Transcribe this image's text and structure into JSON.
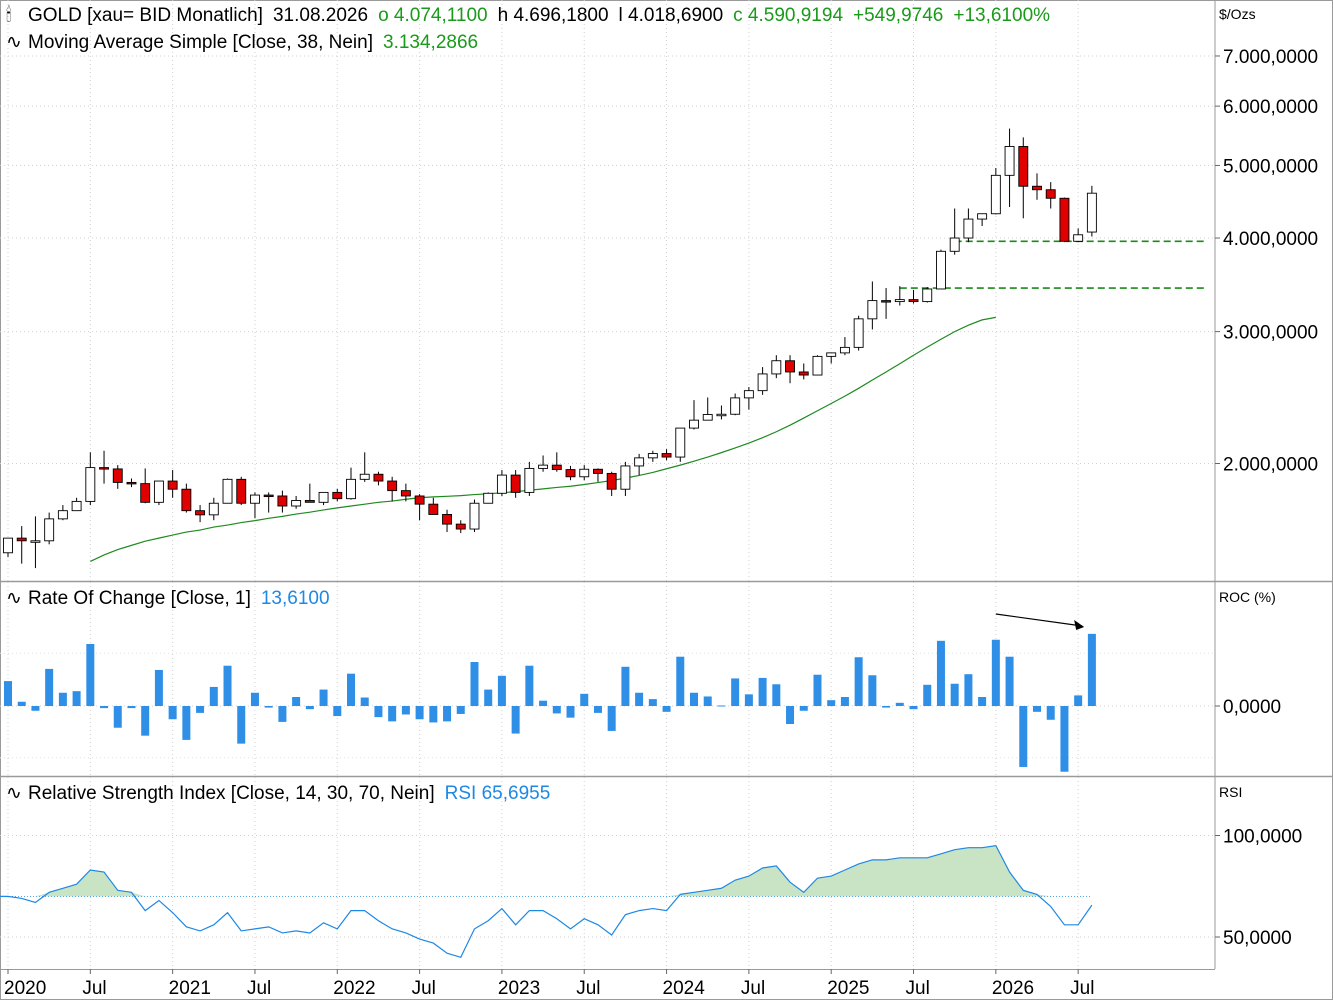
{
  "header": {
    "symbol": "GOLD [xau= BID Monatlich]",
    "date": "31.08.2026",
    "open": "o 4.074,1100",
    "high": "h 4.696,1800",
    "low": "l 4.018,6900",
    "close": "c 4.590,9194",
    "change": "+549,9746",
    "change_pct": "+13,6100%"
  },
  "indicators": {
    "ma_label": "Moving Average Simple  [Close, 38, Nein]",
    "ma_value": "3.134,2866",
    "roc_label": "Rate Of Change  [Close, 1]",
    "roc_value": "13,6100",
    "rsi_label": "Relative Strength Index  [Close, 14, 30, 70, Nein]",
    "rsi_value": "RSI 65,6955"
  },
  "units": {
    "price": "$/Ozs",
    "roc": "ROC (%)",
    "rsi": "RSI"
  },
  "colors": {
    "up_body": "#ffffff",
    "down_body": "#e00000",
    "ma": "#1f8a1f",
    "roc": "#2f8fe6",
    "rsi_line": "#1e88e5",
    "rsi_fill": "#c9e3c5",
    "support": "#1a8a1a"
  },
  "icons": {
    "candle": "candlestick-icon",
    "indicator": "wave-icon"
  },
  "chart_data": {
    "type": "candlestick",
    "price_axis": {
      "scale": "log",
      "ticks": [
        2000000,
        3000000,
        4000000,
        5000000,
        6000000,
        7000000
      ],
      "tick_labels": [
        "2.000,0000",
        "3.000,0000",
        "4.000,0000",
        "5.000,0000",
        "6.000,0000",
        "7.000,0000"
      ]
    },
    "x_labels": [
      {
        "label": "2020",
        "index": 0
      },
      {
        "label": "Jul",
        "index": 6
      },
      {
        "label": "2021",
        "index": 12
      },
      {
        "label": "Jul",
        "index": 18
      },
      {
        "label": "2022",
        "index": 24
      },
      {
        "label": "Jul",
        "index": 30
      },
      {
        "label": "2023",
        "index": 36
      },
      {
        "label": "Jul",
        "index": 42
      },
      {
        "label": "2024",
        "index": 48
      },
      {
        "label": "Jul",
        "index": 54
      },
      {
        "label": "2025",
        "index": 60
      },
      {
        "label": "Jul",
        "index": 66
      },
      {
        "label": "2026",
        "index": 72
      },
      {
        "label": "Jul",
        "index": 78
      }
    ],
    "ohlc": [
      [
        1520000,
        1590000,
        1500000,
        1590000
      ],
      [
        1590000,
        1650000,
        1470000,
        1577000
      ],
      [
        1577000,
        1700000,
        1450000,
        1577000
      ],
      [
        1577000,
        1720000,
        1560000,
        1687000
      ],
      [
        1687000,
        1760000,
        1680000,
        1730000
      ],
      [
        1730000,
        1800000,
        1740000,
        1780000
      ],
      [
        1780000,
        2070000,
        1760000,
        1975000
      ],
      [
        1975000,
        2080000,
        1880000,
        1967000
      ],
      [
        1967000,
        1990000,
        1850000,
        1887000
      ],
      [
        1887000,
        1910000,
        1860000,
        1880000
      ],
      [
        1880000,
        1970000,
        1770000,
        1775000
      ],
      [
        1775000,
        1860000,
        1760000,
        1895000
      ],
      [
        1895000,
        1960000,
        1800000,
        1848000
      ],
      [
        1848000,
        1880000,
        1720000,
        1730000
      ],
      [
        1730000,
        1760000,
        1670000,
        1708000
      ],
      [
        1708000,
        1800000,
        1680000,
        1770000
      ],
      [
        1770000,
        1910000,
        1770000,
        1905000
      ],
      [
        1905000,
        1920000,
        1760000,
        1770000
      ],
      [
        1770000,
        1830000,
        1690000,
        1815000
      ],
      [
        1815000,
        1830000,
        1720000,
        1810000
      ],
      [
        1810000,
        1840000,
        1720000,
        1755000
      ],
      [
        1755000,
        1810000,
        1740000,
        1785000
      ],
      [
        1785000,
        1880000,
        1780000,
        1775000
      ],
      [
        1775000,
        1830000,
        1760000,
        1830000
      ],
      [
        1830000,
        1850000,
        1780000,
        1795000
      ],
      [
        1795000,
        1975000,
        1790000,
        1905000
      ],
      [
        1905000,
        2070000,
        1890000,
        1935000
      ],
      [
        1935000,
        1950000,
        1870000,
        1895000
      ],
      [
        1895000,
        1920000,
        1780000,
        1840000
      ],
      [
        1840000,
        1880000,
        1780000,
        1810000
      ],
      [
        1810000,
        1820000,
        1680000,
        1765000
      ],
      [
        1765000,
        1800000,
        1710000,
        1710000
      ],
      [
        1710000,
        1735000,
        1620000,
        1660000
      ],
      [
        1660000,
        1680000,
        1615000,
        1635000
      ],
      [
        1635000,
        1790000,
        1620000,
        1770000
      ],
      [
        1770000,
        1830000,
        1770000,
        1825000
      ],
      [
        1825000,
        1960000,
        1810000,
        1930000
      ],
      [
        1930000,
        1960000,
        1800000,
        1830000
      ],
      [
        1830000,
        2010000,
        1810000,
        1970000
      ],
      [
        1970000,
        2050000,
        1950000,
        1990000
      ],
      [
        1990000,
        2070000,
        1950000,
        1963000
      ],
      [
        1963000,
        1985000,
        1900000,
        1920000
      ],
      [
        1920000,
        1990000,
        1900000,
        1965000
      ],
      [
        1965000,
        1970000,
        1890000,
        1940000
      ],
      [
        1940000,
        1950000,
        1810000,
        1848000
      ],
      [
        1848000,
        2010000,
        1810000,
        1985000
      ],
      [
        1985000,
        2060000,
        1930000,
        2035000
      ],
      [
        2035000,
        2080000,
        2010000,
        2062000
      ],
      [
        2062000,
        2090000,
        2020000,
        2040000
      ],
      [
        2040000,
        2200000,
        2010000,
        2230000
      ],
      [
        2230000,
        2430000,
        2220000,
        2285000
      ],
      [
        2285000,
        2450000,
        2290000,
        2325000
      ],
      [
        2325000,
        2390000,
        2290000,
        2327000
      ],
      [
        2327000,
        2480000,
        2320000,
        2447000
      ],
      [
        2447000,
        2530000,
        2360000,
        2502000
      ],
      [
        2502000,
        2690000,
        2470000,
        2634000
      ],
      [
        2634000,
        2790000,
        2600000,
        2743000
      ],
      [
        2743000,
        2790000,
        2560000,
        2650000
      ],
      [
        2650000,
        2720000,
        2590000,
        2625000
      ],
      [
        2625000,
        2790000,
        2630000,
        2780000
      ],
      [
        2780000,
        2800000,
        2720000,
        2810000
      ],
      [
        2810000,
        2950000,
        2790000,
        2858000
      ],
      [
        2858000,
        3150000,
        2830000,
        3120000
      ],
      [
        3120000,
        3500000,
        3020000,
        3300000
      ],
      [
        3300000,
        3430000,
        3120000,
        3290000
      ],
      [
        3290000,
        3450000,
        3250000,
        3310000
      ],
      [
        3310000,
        3410000,
        3270000,
        3290000
      ],
      [
        3290000,
        3440000,
        3280000,
        3420000
      ],
      [
        3420000,
        3860000,
        3420000,
        3840000
      ],
      [
        3840000,
        4380000,
        3800000,
        4000000
      ],
      [
        4000000,
        4380000,
        3950000,
        4240000
      ],
      [
        4240000,
        4300000,
        4150000,
        4310000
      ],
      [
        4310000,
        4960000,
        4300000,
        4850000
      ],
      [
        4850000,
        5600000,
        4400000,
        5300000
      ],
      [
        5300000,
        5450000,
        4250000,
        4690000
      ],
      [
        4690000,
        4880000,
        4500000,
        4640000
      ],
      [
        4640000,
        4750000,
        4380000,
        4520000
      ],
      [
        4520000,
        4530000,
        3950000,
        3960000
      ],
      [
        3960000,
        4120000,
        3950000,
        4040000
      ],
      [
        4074110,
        4696180,
        4018690,
        4590919
      ]
    ],
    "ma": {
      "name": "Moving Average Simple",
      "period": 38,
      "first_index": 6,
      "values": [
        1480000,
        1510000,
        1535000,
        1555000,
        1575000,
        1590000,
        1605000,
        1620000,
        1630000,
        1645000,
        1655000,
        1668000,
        1678000,
        1690000,
        1700000,
        1712000,
        1722000,
        1734000,
        1745000,
        1755000,
        1765000,
        1775000,
        1782000,
        1792000,
        1800000,
        1805000,
        1808000,
        1812000,
        1818000,
        1822000,
        1828000,
        1834000,
        1842000,
        1850000,
        1858000,
        1865000,
        1875000,
        1886000,
        1898000,
        1912000,
        1928000,
        1946000,
        1968000,
        1990000,
        2014000,
        2040000,
        2068000,
        2098000,
        2130000,
        2165000,
        2205000,
        2250000,
        2300000,
        2352000,
        2405000,
        2460000,
        2520000,
        2585000,
        2650000,
        2718000,
        2790000,
        2860000,
        2930000,
        3000000,
        3060000,
        3110000,
        3134287
      ]
    },
    "support_levels": [
      {
        "value": 3960000,
        "from_index": 69,
        "to_index": 83
      },
      {
        "value": 3430000,
        "from_index": 65,
        "to_index": 83
      }
    ],
    "roc": {
      "name": "Rate Of Change",
      "axis_ticks": [
        0
      ],
      "axis_labels": [
        "0,0000"
      ],
      "values": [
        4.7,
        0.8,
        -0.9,
        7,
        2.5,
        2.8,
        11.7,
        -0.4,
        -4.1,
        -0.4,
        -5.6,
        6.8,
        -2.5,
        -6.4,
        -1.3,
        3.6,
        7.6,
        -7.1,
        2.5,
        -0.3,
        -3,
        1.7,
        -0.6,
        3.1,
        -1.9,
        6.1,
        1.6,
        -2.1,
        -2.9,
        -1.6,
        -2.5,
        -3.1,
        -2.9,
        -1.5,
        8.3,
        3.1,
        5.7,
        -5.2,
        7.6,
        1,
        -1.4,
        -2.2,
        2.3,
        -1.3,
        -4.7,
        7.4,
        2.5,
        1.3,
        -1.1,
        9.3,
        2.5,
        1.8,
        0.1,
        5.2,
        2.2,
        5.3,
        4.1,
        -3.4,
        -0.9,
        5.9,
        1.1,
        1.7,
        9.2,
        5.8,
        -0.3,
        0.6,
        -0.6,
        4,
        12.3,
        4.2,
        6,
        1.7,
        12.5,
        9.3,
        -11.5,
        -1.1,
        -2.6,
        -12.4,
        2,
        13.61
      ]
    },
    "rsi": {
      "name": "Relative Strength Index",
      "levels": [
        30,
        70
      ],
      "axis_ticks": [
        50,
        100
      ],
      "axis_labels": [
        "50,0000",
        "100,0000"
      ],
      "values": [
        70,
        69,
        67,
        72,
        74,
        76,
        83,
        82,
        73,
        72,
        63,
        68,
        62,
        55,
        53,
        56,
        62,
        53,
        54,
        55,
        52,
        53,
        52,
        57,
        54,
        63,
        63,
        58,
        54,
        52,
        49,
        47,
        42,
        40,
        54,
        58,
        64,
        56,
        63,
        63,
        59,
        54,
        59,
        56,
        51,
        61,
        63,
        64,
        63,
        71,
        72,
        73,
        74,
        78,
        80,
        84,
        85,
        77,
        72,
        79,
        80,
        83,
        86,
        88,
        88,
        89,
        89,
        89,
        91,
        93,
        94,
        94,
        95,
        82,
        73,
        71,
        65,
        56,
        56,
        65.6955
      ]
    }
  }
}
